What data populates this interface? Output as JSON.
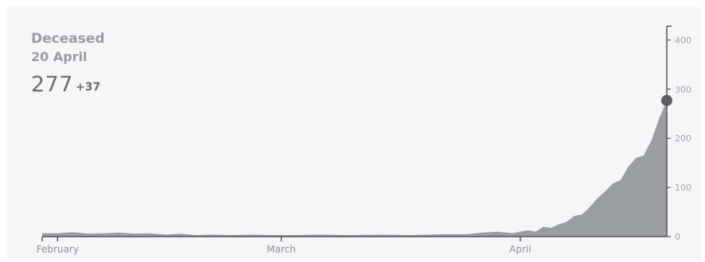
{
  "header": {
    "title": "Deceased",
    "date": "20 April",
    "value": "277",
    "delta": "+37"
  },
  "colors": {
    "fill": "#9a9da2",
    "axis": "#555558",
    "marker": "#5e5e62",
    "text": "#9c9ca1",
    "value_text": "#6c6c70"
  },
  "chart_data": {
    "type": "area",
    "title": "Deceased",
    "xlabel": "",
    "ylabel": "",
    "x_range": [
      "2020-01-30",
      "2020-04-20"
    ],
    "ylim": [
      0,
      420
    ],
    "y_ticks": [
      0,
      100,
      200,
      300,
      400
    ],
    "x_ticks": [
      {
        "date": "2020-02-01",
        "label": "February"
      },
      {
        "date": "2020-03-01",
        "label": "March"
      },
      {
        "date": "2020-04-01",
        "label": "April"
      }
    ],
    "highlight": {
      "date": "2020-04-20",
      "value": 277
    },
    "series": [
      {
        "values": [
          [
            "2020-01-30",
            7
          ],
          [
            "2020-02-01",
            7
          ],
          [
            "2020-02-03",
            9
          ],
          [
            "2020-02-05",
            6
          ],
          [
            "2020-02-07",
            7
          ],
          [
            "2020-02-09",
            8
          ],
          [
            "2020-02-11",
            6
          ],
          [
            "2020-02-13",
            7
          ],
          [
            "2020-02-15",
            4
          ],
          [
            "2020-02-17",
            6
          ],
          [
            "2020-02-19",
            3
          ],
          [
            "2020-02-21",
            4
          ],
          [
            "2020-02-23",
            3
          ],
          [
            "2020-02-26",
            4
          ],
          [
            "2020-02-29",
            3
          ],
          [
            "2020-03-03",
            3
          ],
          [
            "2020-03-06",
            4
          ],
          [
            "2020-03-10",
            3
          ],
          [
            "2020-03-14",
            4
          ],
          [
            "2020-03-18",
            3
          ],
          [
            "2020-03-22",
            5
          ],
          [
            "2020-03-25",
            5
          ],
          [
            "2020-03-27",
            8
          ],
          [
            "2020-03-29",
            10
          ],
          [
            "2020-03-31",
            7
          ],
          [
            "2020-04-01",
            10
          ],
          [
            "2020-04-02",
            13
          ],
          [
            "2020-04-03",
            10
          ],
          [
            "2020-04-04",
            20
          ],
          [
            "2020-04-05",
            18
          ],
          [
            "2020-04-06",
            25
          ],
          [
            "2020-04-07",
            30
          ],
          [
            "2020-04-08",
            42
          ],
          [
            "2020-04-09",
            45
          ],
          [
            "2020-04-10",
            60
          ],
          [
            "2020-04-11",
            78
          ],
          [
            "2020-04-12",
            92
          ],
          [
            "2020-04-13",
            108
          ],
          [
            "2020-04-14",
            115
          ],
          [
            "2020-04-15",
            142
          ],
          [
            "2020-04-16",
            160
          ],
          [
            "2020-04-17",
            165
          ],
          [
            "2020-04-18",
            195
          ],
          [
            "2020-04-19",
            240
          ],
          [
            "2020-04-20",
            277
          ]
        ]
      }
    ]
  }
}
